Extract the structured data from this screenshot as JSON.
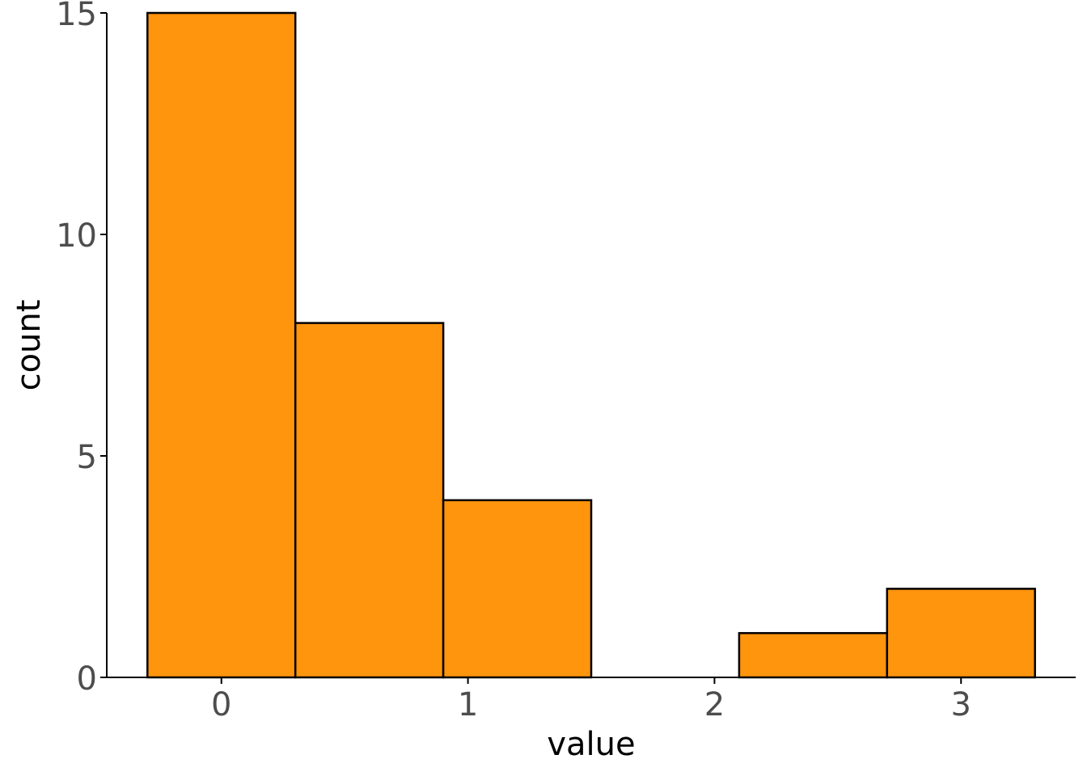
{
  "chart_data": {
    "type": "bar",
    "xlabel": "value",
    "ylabel": "count",
    "bin_width": 0.6,
    "bins": [
      {
        "x_start": -0.3,
        "x_end": 0.3,
        "count": 15
      },
      {
        "x_start": 0.3,
        "x_end": 0.9,
        "count": 8
      },
      {
        "x_start": 0.9,
        "x_end": 1.5,
        "count": 4
      },
      {
        "x_start": 1.5,
        "x_end": 2.1,
        "count": 0
      },
      {
        "x_start": 2.1,
        "x_end": 2.7,
        "count": 1
      },
      {
        "x_start": 2.7,
        "x_end": 3.3,
        "count": 2
      }
    ],
    "xlim": [
      -0.465,
      3.465
    ],
    "ylim": [
      0,
      15
    ],
    "x_ticks": [
      0,
      1,
      2,
      3
    ],
    "y_ticks": [
      0,
      5,
      10,
      15
    ],
    "bar_fill": "#FF940D",
    "bar_outline": "#000000",
    "grid": false
  }
}
